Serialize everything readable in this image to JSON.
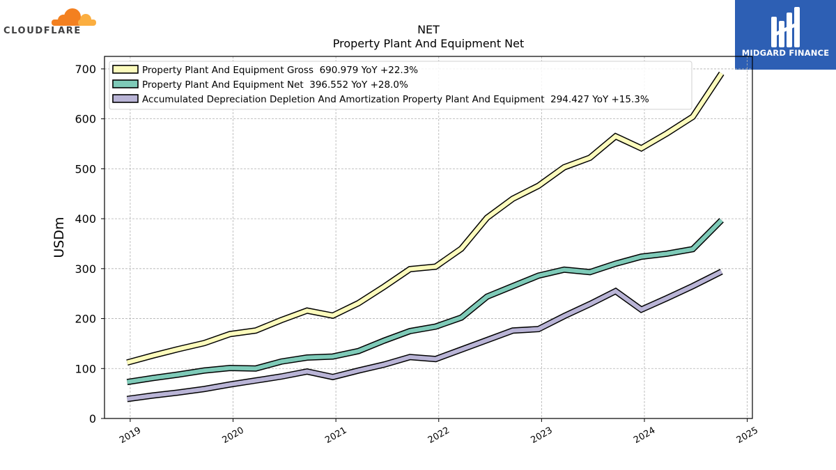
{
  "brand": {
    "left_logo_text": "CLOUDFLARE",
    "left_logo_color": "#f38020",
    "right_logo_text": "MIDGARD FINANCE",
    "right_logo_bg": "#2d5fb4"
  },
  "chart_data": {
    "type": "line",
    "title": "NET",
    "subtitle": "Property Plant And Equipment Net",
    "xlabel": "",
    "ylabel": "USDm",
    "xlim": [
      2018.75,
      2025.05
    ],
    "ylim": [
      0,
      725
    ],
    "x_ticks": [
      "2019",
      "2020",
      "2021",
      "2022",
      "2023",
      "2024",
      "2025"
    ],
    "y_ticks": [
      "0",
      "100",
      "200",
      "300",
      "400",
      "500",
      "600",
      "700"
    ],
    "grid": true,
    "legend_position": "top-left",
    "x": [
      2018.97,
      2019.22,
      2019.47,
      2019.72,
      2019.97,
      2020.22,
      2020.47,
      2020.72,
      2020.97,
      2021.22,
      2021.47,
      2021.72,
      2021.97,
      2022.22,
      2022.47,
      2022.72,
      2022.97,
      2023.22,
      2023.47,
      2023.72,
      2023.97,
      2024.22,
      2024.47,
      2024.75
    ],
    "series": [
      {
        "name": "Property Plant And Equipment Gross  690.979 YoY +22.3%",
        "color": "#fcfbbc",
        "values": [
          112,
          126,
          139,
          151,
          169,
          176,
          197,
          216,
          206,
          231,
          264,
          299,
          304,
          340,
          402,
          440,
          466,
          503,
          522,
          565,
          541,
          571,
          604,
          691
        ]
      },
      {
        "name": "Property Plant And Equipment Net  396.552 YoY +28.0%",
        "color": "#7ecab8",
        "values": [
          73,
          81,
          88,
          96,
          101,
          100,
          114,
          122,
          124,
          135,
          156,
          175,
          184,
          202,
          244,
          265,
          286,
          298,
          293,
          310,
          324,
          330,
          339,
          397
        ]
      },
      {
        "name": "Accumulated Depreciation Depletion And Amortization Property Plant And Equipment  294.427 YoY +15.3%",
        "color": "#b9b4d6",
        "values": [
          39,
          46,
          52,
          59,
          68,
          76,
          84,
          94,
          83,
          96,
          108,
          123,
          119,
          138,
          157,
          176,
          179,
          205,
          229,
          255,
          218,
          241,
          265,
          294
        ]
      }
    ]
  }
}
